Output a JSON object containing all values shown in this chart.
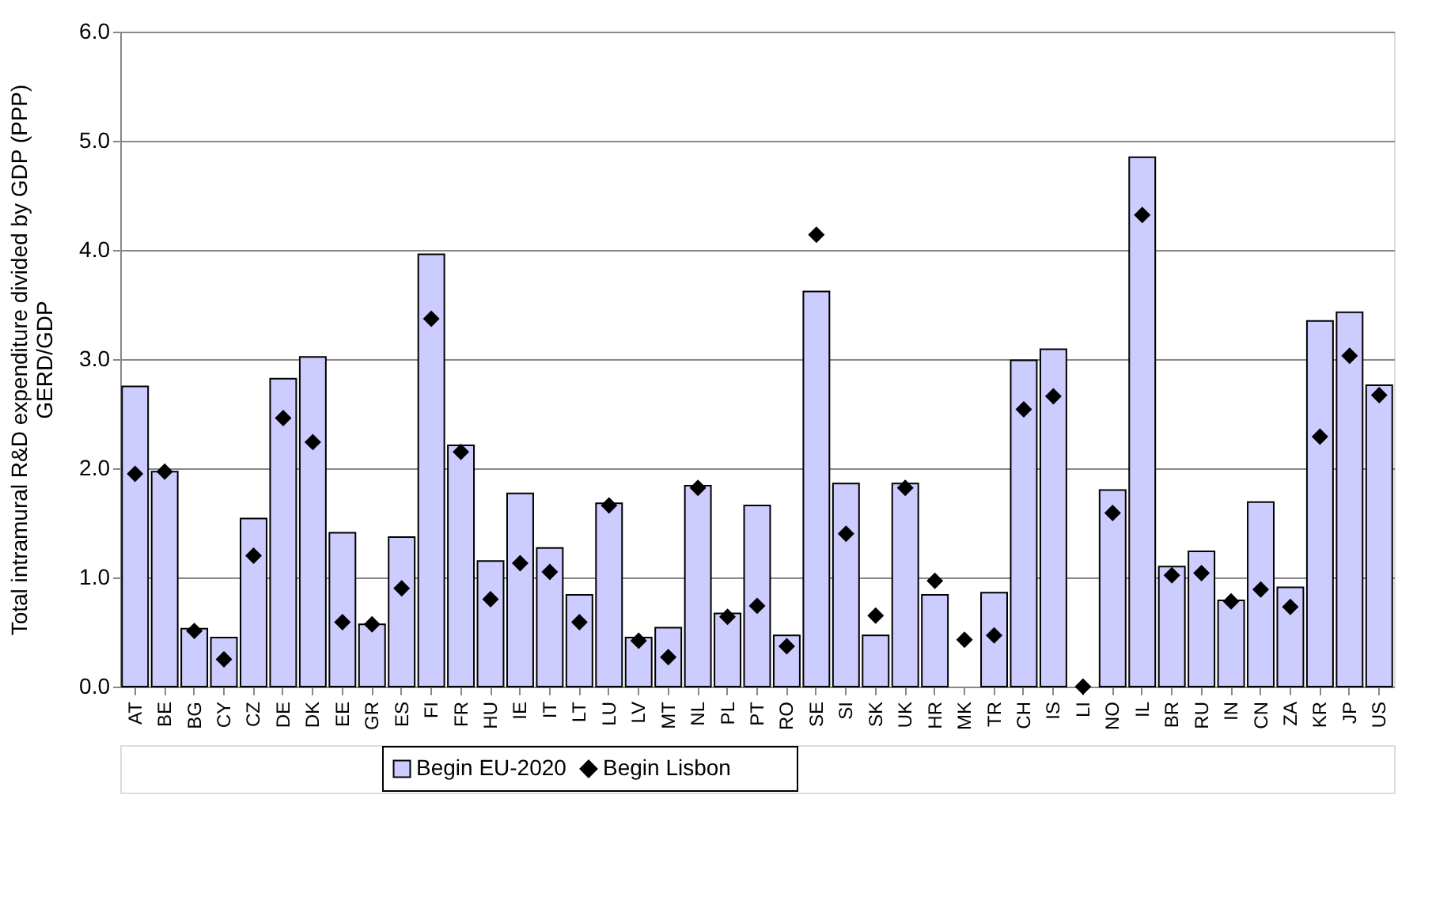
{
  "chart_data": {
    "type": "bar",
    "ylabel": [
      "Total intramural R&D expenditure divided by GDP (PPP)",
      "GERD/GDP"
    ],
    "categories": [
      "AT",
      "BE",
      "BG",
      "CY",
      "CZ",
      "DE",
      "DK",
      "EE",
      "GR",
      "ES",
      "FI",
      "FR",
      "HU",
      "IE",
      "IT",
      "LT",
      "LU",
      "LV",
      "MT",
      "NL",
      "PL",
      "PT",
      "RO",
      "SE",
      "SI",
      "SK",
      "UK",
      "HR",
      "MK",
      "TR",
      "CH",
      "IS",
      "LI",
      "NO",
      "IL",
      "BR",
      "RU",
      "IN",
      "CN",
      "ZA",
      "KR",
      "JP",
      "US"
    ],
    "series": [
      {
        "name": "Begin EU-2020",
        "color": "#ccccff",
        "values": [
          2.75,
          1.97,
          0.53,
          0.45,
          1.54,
          2.82,
          3.02,
          1.41,
          0.57,
          1.37,
          3.96,
          2.21,
          1.15,
          1.77,
          1.27,
          0.84,
          1.68,
          0.45,
          0.54,
          1.84,
          0.67,
          1.66,
          0.47,
          3.62,
          1.86,
          0.47,
          1.86,
          0.84,
          null,
          0.86,
          2.99,
          3.09,
          null,
          1.8,
          4.85,
          1.1,
          1.24,
          0.79,
          1.69,
          0.91,
          3.35,
          3.43,
          2.76
        ]
      },
      {
        "name": "Begin Lisbon",
        "type": "scatter",
        "color": "#000000",
        "marker": "diamond",
        "values": [
          1.95,
          1.97,
          0.51,
          0.25,
          1.2,
          2.46,
          2.24,
          0.59,
          0.57,
          0.9,
          3.37,
          2.15,
          0.8,
          1.13,
          1.05,
          0.59,
          1.66,
          0.42,
          0.27,
          1.82,
          0.64,
          0.74,
          0.37,
          4.14,
          1.4,
          0.65,
          1.82,
          0.97,
          0.43,
          0.47,
          2.54,
          2.66,
          0.0,
          1.59,
          4.32,
          1.02,
          1.04,
          0.78,
          0.89,
          0.73,
          2.29,
          3.03,
          2.67
        ]
      }
    ],
    "ylim": [
      0,
      6
    ],
    "yticks": [
      {
        "value": 0,
        "label": "0.0"
      },
      {
        "value": 1,
        "label": "1.0"
      },
      {
        "value": 2,
        "label": "2.0"
      },
      {
        "value": 3,
        "label": "3.0"
      },
      {
        "value": 4,
        "label": "4.0"
      },
      {
        "value": 5,
        "label": "5.0"
      },
      {
        "value": 6,
        "label": "6.0"
      }
    ],
    "grid": "y",
    "legend": "bottom"
  }
}
